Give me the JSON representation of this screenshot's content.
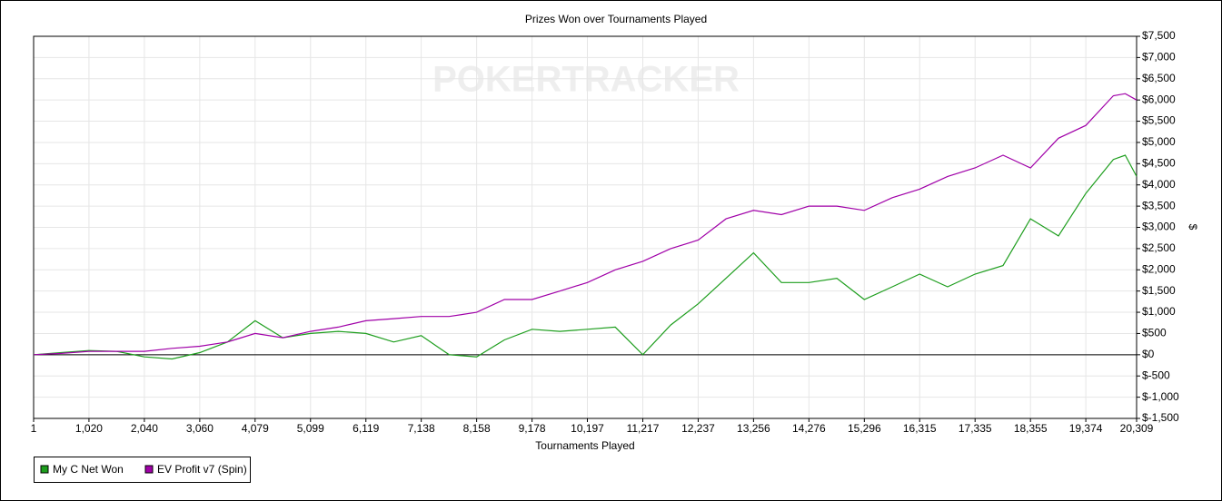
{
  "chart_data": {
    "type": "line",
    "title": "Prizes Won over Tournaments Played",
    "watermark": "POKERTRACKER",
    "x_label": "Tournaments Played",
    "y_label": "$",
    "grid": true,
    "legend": "bottom-left",
    "xlim": [
      1,
      20309
    ],
    "xticks": [
      1,
      {
        "value": 1020,
        "label": "1,020"
      },
      {
        "value": 2040,
        "label": "2,040"
      },
      {
        "value": 3060,
        "label": "3,060"
      },
      {
        "value": 4079,
        "label": "4,079"
      },
      {
        "value": 5099,
        "label": "5,099"
      },
      {
        "value": 6119,
        "label": "6,119"
      },
      {
        "value": 7138,
        "label": "7,138"
      },
      {
        "value": 8158,
        "label": "8,158"
      },
      {
        "value": 9178,
        "label": "9,178"
      },
      {
        "value": 10197,
        "label": "10,197"
      },
      {
        "value": 11217,
        "label": "11,217"
      },
      {
        "value": 12237,
        "label": "12,237"
      },
      {
        "value": 13256,
        "label": "13,256"
      },
      {
        "value": 14276,
        "label": "14,276"
      },
      {
        "value": 15296,
        "label": "15,296"
      },
      {
        "value": 16315,
        "label": "16,315"
      },
      {
        "value": 17335,
        "label": "17,335"
      },
      {
        "value": 18355,
        "label": "18,355"
      },
      {
        "value": 19374,
        "label": "19,374"
      },
      {
        "value": 20309,
        "label": "20,309"
      }
    ],
    "ylim": [
      -1500,
      7500
    ],
    "yticks": [
      {
        "value": -1500,
        "label": "$-1,500"
      },
      {
        "value": -1000,
        "label": "$-1,000"
      },
      {
        "value": -500,
        "label": "$-500"
      },
      {
        "value": 0,
        "label": "$0"
      },
      {
        "value": 500,
        "label": "$500"
      },
      {
        "value": 1000,
        "label": "$1,000"
      },
      {
        "value": 1500,
        "label": "$1,500"
      },
      {
        "value": 2000,
        "label": "$2,000"
      },
      {
        "value": 2500,
        "label": "$2,500"
      },
      {
        "value": 3000,
        "label": "$3,000"
      },
      {
        "value": 3500,
        "label": "$3,500"
      },
      {
        "value": 4000,
        "label": "$4,000"
      },
      {
        "value": 4500,
        "label": "$4,500"
      },
      {
        "value": 5000,
        "label": "$5,000"
      },
      {
        "value": 5500,
        "label": "$5,500"
      },
      {
        "value": 6000,
        "label": "$6,000"
      },
      {
        "value": 6500,
        "label": "$6,500"
      },
      {
        "value": 7000,
        "label": "$7,000"
      },
      {
        "value": 7500,
        "label": "$7,500"
      }
    ],
    "x": [
      1,
      510,
      1020,
      1530,
      2040,
      2550,
      3060,
      3570,
      4079,
      4590,
      5099,
      5610,
      6119,
      6630,
      7138,
      7650,
      8158,
      8670,
      9178,
      9690,
      10197,
      10710,
      11217,
      11730,
      12237,
      12750,
      13256,
      13770,
      14276,
      14790,
      15296,
      15810,
      16315,
      16830,
      17335,
      17850,
      18355,
      18870,
      19374,
      19880,
      20100,
      20309
    ],
    "series": [
      {
        "name": "My C Net Won",
        "color": "#1e9e1e",
        "values": [
          0,
          50,
          100,
          80,
          -50,
          -100,
          50,
          300,
          800,
          400,
          500,
          550,
          500,
          300,
          450,
          0,
          -50,
          350,
          600,
          550,
          600,
          650,
          0,
          700,
          1200,
          1800,
          2400,
          1700,
          1700,
          1800,
          1300,
          1600,
          1900,
          1600,
          1900,
          2100,
          3200,
          2800,
          3800,
          4600,
          4700,
          4200
        ]
      },
      {
        "name": "EV Profit v7 (Spin)",
        "color": "#a000a8",
        "values": [
          0,
          30,
          80,
          80,
          80,
          150,
          200,
          300,
          500,
          400,
          550,
          650,
          800,
          850,
          900,
          900,
          1000,
          1300,
          1300,
          1500,
          1700,
          2000,
          2200,
          2500,
          2700,
          3200,
          3400,
          3300,
          3500,
          3500,
          3400,
          3700,
          3900,
          4200,
          4400,
          4700,
          4400,
          5100,
          5400,
          6100,
          6150,
          6000
        ]
      }
    ]
  }
}
